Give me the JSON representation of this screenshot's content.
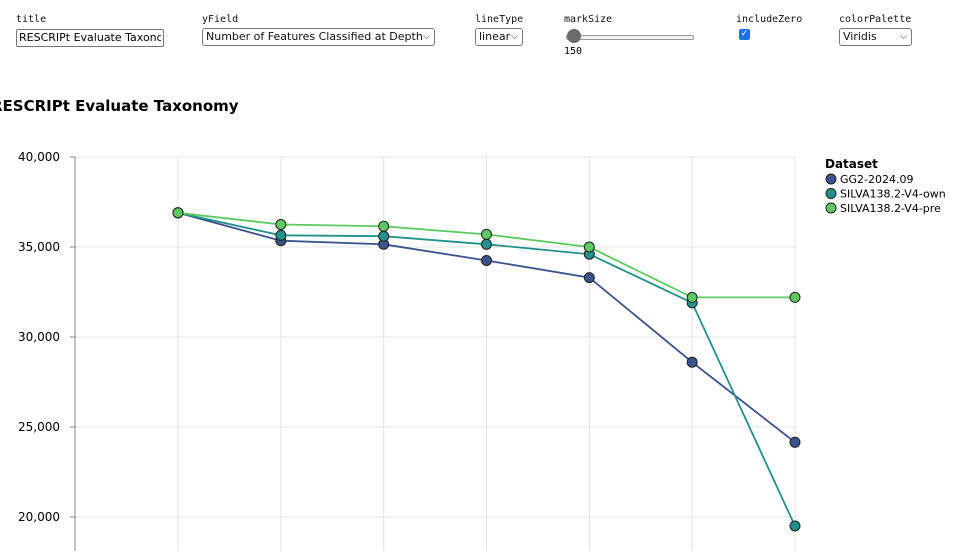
{
  "controls": {
    "title": {
      "label": "title",
      "value": "RESCRIPt Evaluate Taxonomy"
    },
    "yField": {
      "label": "yField",
      "value": "Number of Features Classified at Depth"
    },
    "lineType": {
      "label": "lineType",
      "value": "linear"
    },
    "markSize": {
      "label": "markSize",
      "value": "150"
    },
    "includeZero": {
      "label": "includeZero",
      "checked": true
    },
    "colorPalette": {
      "label": "colorPalette",
      "value": "Viridis"
    }
  },
  "colors": {
    "GG2-2024.09": "#3b528b",
    "SILVA138.2-V4-own": "#21918c",
    "SILVA138.2-V4-pre": "#5ec962"
  },
  "chart_data": {
    "type": "line",
    "title": "RESCRIPt Evaluate Taxonomy",
    "x": [
      1,
      2,
      3,
      4,
      5,
      6,
      7
    ],
    "xlabel": "",
    "ylabel": "",
    "y_ticks": [
      20000,
      25000,
      30000,
      35000,
      40000
    ],
    "y_tick_labels": [
      "20,000",
      "25,000",
      "30,000",
      "35,000",
      "40,000"
    ],
    "ylim": [
      18000,
      40000
    ],
    "legend": {
      "title": "Dataset",
      "position": "top-right"
    },
    "series": [
      {
        "name": "GG2-2024.09",
        "values": [
          36900,
          35350,
          35150,
          34250,
          33300,
          28600,
          24150
        ]
      },
      {
        "name": "SILVA138.2-V4-own",
        "values": [
          36900,
          35650,
          35600,
          35150,
          34600,
          31900,
          19500
        ]
      },
      {
        "name": "SILVA138.2-V4-pre",
        "values": [
          36900,
          36250,
          36150,
          35700,
          35000,
          32200,
          32200
        ]
      }
    ]
  }
}
